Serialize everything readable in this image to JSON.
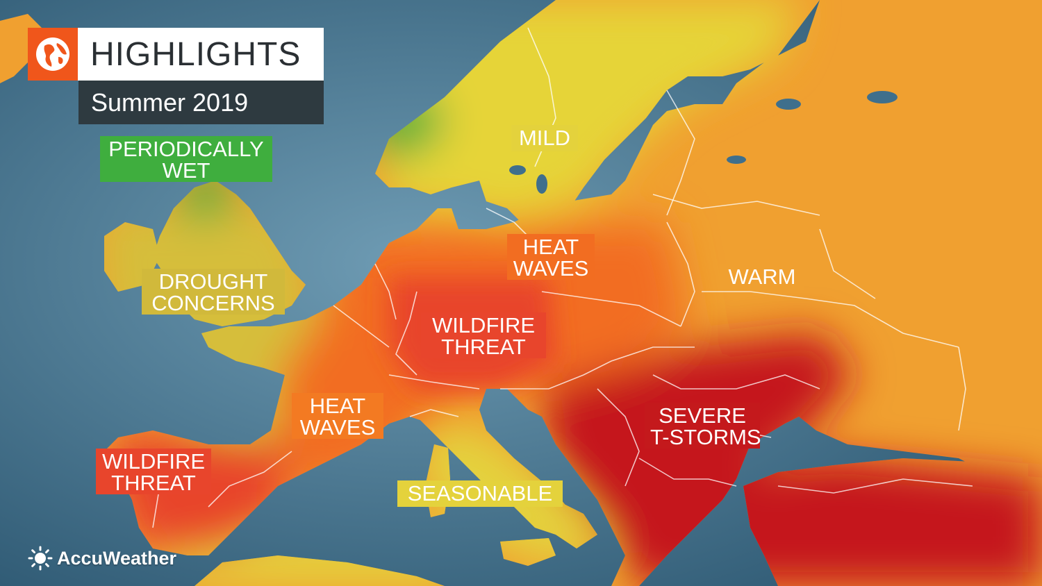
{
  "header": {
    "title": "HIGHLIGHTS",
    "subtitle": "Summer 2019",
    "logo_icon": "globe-icon",
    "logo_color": "#f0561b"
  },
  "colors": {
    "ocean": "#3d6b86",
    "mild": "#e6d439",
    "warm": "#f0a030",
    "heat": "#f26d21",
    "wildfire": "#e8452c",
    "severe": "#c5191c",
    "wet": "#3fae3e",
    "drought": "#d6be3a"
  },
  "labels": {
    "periodically_wet": {
      "line1": "PERIODICALLY",
      "line2": "WET",
      "bg": "#3fae3e"
    },
    "drought": {
      "line1": "DROUGHT",
      "line2": "CONCERNS",
      "bg": "#d1b93b"
    },
    "mild": {
      "line1": "MILD",
      "bg": "#e4d23c"
    },
    "heat_waves_north": {
      "line1": "HEAT",
      "line2": "WAVES",
      "bg": "#f26d21"
    },
    "warm": {
      "line1": "WARM",
      "bg": "#f0a030"
    },
    "wildfire_central": {
      "line1": "WILDFIRE",
      "line2": "THREAT",
      "bg": "#e8452c"
    },
    "heat_waves_west": {
      "line1": "HEAT",
      "line2": "WAVES",
      "bg": "#f37a22"
    },
    "severe": {
      "line1": "SEVERE",
      "line2": "T-STORMS",
      "bg": "#c4191c"
    },
    "wildfire_iberia": {
      "line1": "WILDFIRE",
      "line2": "THREAT",
      "bg": "#e8452c"
    },
    "seasonable": {
      "line1": "SEASONABLE",
      "bg": "#e4d23c"
    }
  },
  "brand": {
    "name": "AccuWeather",
    "icon": "sun-icon"
  }
}
